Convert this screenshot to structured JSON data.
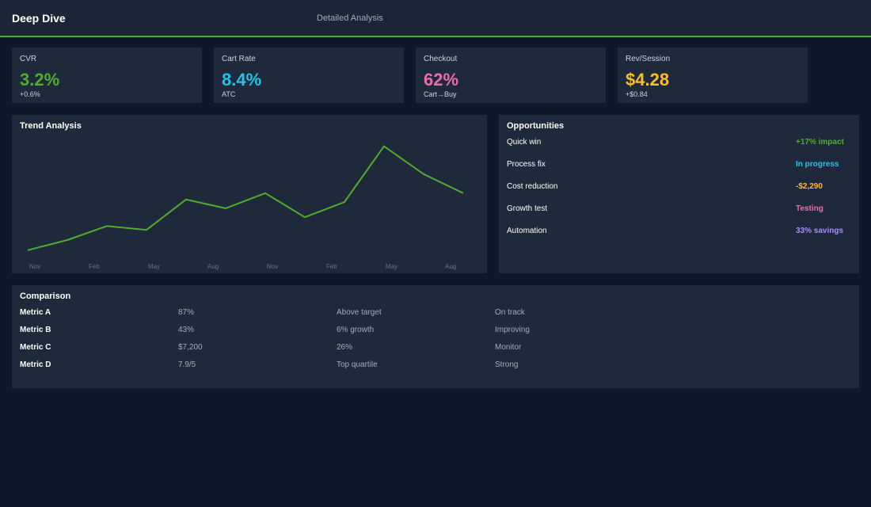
{
  "header": {
    "title": "Deep Dive",
    "subtitle": "Detailed Analysis"
  },
  "kpis": [
    {
      "label": "CVR",
      "value": "3.2%",
      "note": "+0.6%",
      "color": "#4fae2b"
    },
    {
      "label": "Cart Rate",
      "value": "8.4%",
      "note": "ATC",
      "color": "#22c3e6"
    },
    {
      "label": "Checkout",
      "value": "62%",
      "note": "Cart→Buy",
      "color": "#f06ba8"
    },
    {
      "label": "Rev/Session",
      "value": "$4.28",
      "note": "+$0.84",
      "color": "#fbbf24"
    }
  ],
  "trend": {
    "type": "line",
    "title": "Trend Analysis",
    "color": "#4fae2b",
    "x_labels": [
      "Nov",
      "Feb",
      "May",
      "Aug",
      "Nov",
      "Feb",
      "May",
      "Aug"
    ],
    "values": [
      12,
      20,
      31,
      28,
      52,
      45,
      57,
      38,
      50,
      94,
      72,
      57
    ],
    "ylim": [
      0,
      100
    ]
  },
  "opportunities": {
    "title": "Opportunities",
    "items": [
      {
        "label": "Quick win",
        "status": "+17% impact",
        "color": "#4fae2b"
      },
      {
        "label": "Process fix",
        "status": "In progress",
        "color": "#22c3e6"
      },
      {
        "label": "Cost reduction",
        "status": "-$2,290",
        "color": "#fbbf24"
      },
      {
        "label": "Growth test",
        "status": "Testing",
        "color": "#f06ba8"
      },
      {
        "label": "Automation",
        "status": "33% savings",
        "color": "#a78bfa"
      }
    ]
  },
  "comparison": {
    "title": "Comparison",
    "rows": [
      [
        "Metric A",
        "87%",
        "Above target",
        "On track"
      ],
      [
        "Metric B",
        "43%",
        "6% growth",
        "Improving"
      ],
      [
        "Metric C",
        "$7,200",
        "26%",
        "Monitor"
      ],
      [
        "Metric D",
        "7.9/5",
        "Top quartile",
        "Strong"
      ]
    ]
  }
}
